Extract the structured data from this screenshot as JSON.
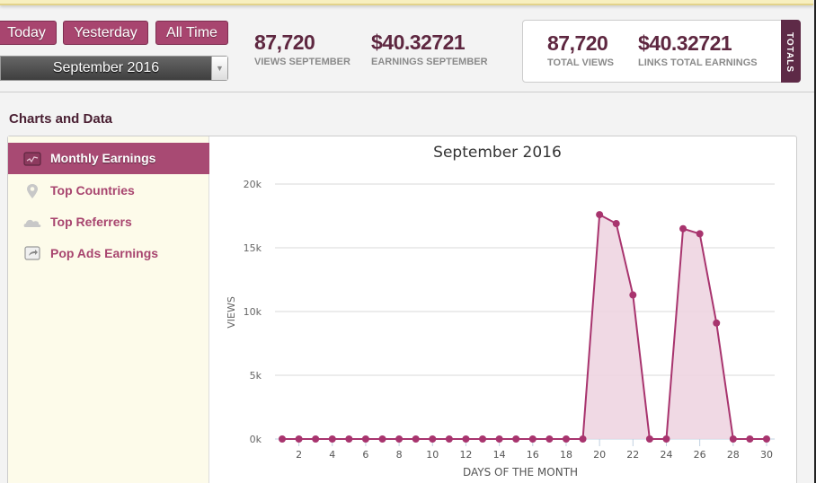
{
  "toolbar": {
    "buttons": [
      {
        "label": "Today"
      },
      {
        "label": "Yesterday"
      },
      {
        "label": "All Time"
      }
    ],
    "month_select": {
      "value": "September 2016"
    }
  },
  "stats": {
    "views_month": {
      "value": "87,720",
      "label": "VIEWS SEPTEMBER"
    },
    "earnings_month": {
      "value": "$40.32721",
      "label": "EARNINGS SEPTEMBER"
    }
  },
  "totals": {
    "tab_label": "TOTALS",
    "total_views": {
      "value": "87,720",
      "label": "TOTAL VIEWS"
    },
    "total_earnings": {
      "value": "$40.32721",
      "label": "LINKS TOTAL EARNINGS"
    }
  },
  "section": {
    "title": "Charts and Data"
  },
  "sidebar": {
    "items": [
      {
        "label": "Monthly Earnings",
        "icon": "line-chart-icon",
        "active": true
      },
      {
        "label": "Top Countries",
        "icon": "map-pin-icon",
        "active": false
      },
      {
        "label": "Top Referrers",
        "icon": "cloud-icon",
        "active": false
      },
      {
        "label": "Pop Ads Earnings",
        "icon": "share-icon",
        "active": false
      }
    ]
  },
  "colors": {
    "accent": "#a8456f",
    "dark": "#5e2740",
    "series": "#a8346e",
    "fill": "#eed5e1"
  },
  "chart_data": {
    "type": "area",
    "title": "September 2016",
    "xlabel": "DAYS OF THE MONTH",
    "ylabel": "VIEWS",
    "ylim": [
      0,
      20000
    ],
    "xlim": [
      1,
      30
    ],
    "yticks": [
      {
        "v": 0,
        "label": "0k"
      },
      {
        "v": 5000,
        "label": "5k"
      },
      {
        "v": 10000,
        "label": "10k"
      },
      {
        "v": 15000,
        "label": "15k"
      },
      {
        "v": 20000,
        "label": "20k"
      }
    ],
    "xticks": [
      2,
      4,
      6,
      8,
      10,
      12,
      14,
      16,
      18,
      20,
      22,
      24,
      26,
      28,
      30
    ],
    "grid": true,
    "x": [
      1,
      2,
      3,
      4,
      5,
      6,
      7,
      8,
      9,
      10,
      11,
      12,
      13,
      14,
      15,
      16,
      17,
      18,
      19,
      20,
      21,
      22,
      23,
      24,
      25,
      26,
      27,
      28,
      29,
      30
    ],
    "values": [
      0,
      0,
      0,
      0,
      0,
      0,
      0,
      0,
      0,
      0,
      0,
      0,
      0,
      0,
      0,
      0,
      0,
      0,
      0,
      17600,
      16900,
      11300,
      0,
      0,
      16500,
      16100,
      9100,
      0,
      0,
      0
    ]
  }
}
